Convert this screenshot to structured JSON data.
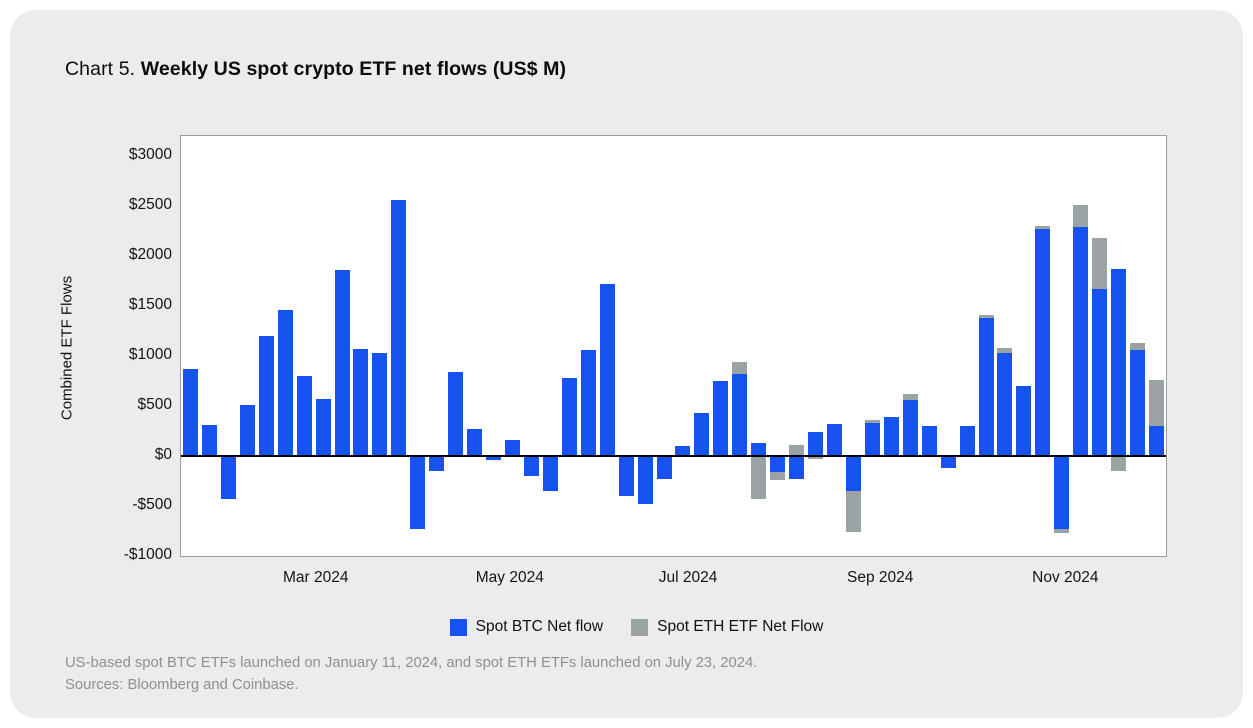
{
  "title": {
    "prefix": "Chart 5.",
    "main": "Weekly US spot crypto ETF net flows (US$ M)"
  },
  "chart_data": {
    "type": "bar",
    "stacked": true,
    "title": "Weekly US spot crypto ETF net flows (US$ M)",
    "xlabel": "",
    "ylabel": "Combined ETF Flows",
    "unit": "US$ millions",
    "x_frequency": "weekly",
    "ylim": [
      -1000,
      3000
    ],
    "grid": false,
    "legend_position": "bottom-center",
    "y_ticks": [
      {
        "value": 3000,
        "label": "$3000"
      },
      {
        "value": 2500,
        "label": "$2500"
      },
      {
        "value": 2000,
        "label": "$2000"
      },
      {
        "value": 1500,
        "label": "$1500"
      },
      {
        "value": 1000,
        "label": "$1000"
      },
      {
        "value": 500,
        "label": "$500"
      },
      {
        "value": 0,
        "label": "$0"
      },
      {
        "value": -500,
        "label": "-$500"
      },
      {
        "value": -1000,
        "label": "-$1000"
      }
    ],
    "x_ticks": [
      {
        "label": "Mar 2024",
        "pos_pct": 14.8
      },
      {
        "label": "May 2024",
        "pos_pct": 34.5
      },
      {
        "label": "Jul 2024",
        "pos_pct": 52.6
      },
      {
        "label": "Sep 2024",
        "pos_pct": 72.1
      },
      {
        "label": "Nov 2024",
        "pos_pct": 90.9
      }
    ],
    "x_week_start": [
      "2024-01-08",
      "2024-01-15",
      "2024-01-22",
      "2024-01-29",
      "2024-02-05",
      "2024-02-12",
      "2024-02-19",
      "2024-02-26",
      "2024-03-04",
      "2024-03-11",
      "2024-03-18",
      "2024-03-25",
      "2024-04-01",
      "2024-04-08",
      "2024-04-15",
      "2024-04-22",
      "2024-04-29",
      "2024-05-06",
      "2024-05-13",
      "2024-05-20",
      "2024-05-27",
      "2024-06-03",
      "2024-06-10",
      "2024-06-17",
      "2024-06-24",
      "2024-07-01",
      "2024-07-08",
      "2024-07-15",
      "2024-07-22",
      "2024-07-29",
      "2024-08-05",
      "2024-08-12",
      "2024-08-19",
      "2024-08-26",
      "2024-09-02",
      "2024-09-09",
      "2024-09-16",
      "2024-09-23",
      "2024-09-30",
      "2024-10-07",
      "2024-10-14",
      "2024-10-21",
      "2024-10-28",
      "2024-11-04",
      "2024-11-11",
      "2024-11-18",
      "2024-11-25",
      "2024-12-02",
      "2024-12-09",
      "2024-12-16",
      "2024-12-23",
      "2024-12-30"
    ],
    "series": [
      {
        "name": "Spot BTC Net flow",
        "color": "#1652f0",
        "values": [
          870,
          310,
          -430,
          510,
          1200,
          1460,
          800,
          570,
          1860,
          1070,
          1030,
          2560,
          -730,
          -150,
          840,
          270,
          -40,
          160,
          -200,
          -350,
          780,
          1060,
          1720,
          -400,
          -480,
          -230,
          100,
          430,
          750,
          820,
          130,
          -160,
          -230,
          240,
          320,
          -350,
          330,
          390,
          560,
          300,
          -120,
          300,
          1380,
          1030,
          700,
          2270,
          -730,
          2290,
          1670,
          1870,
          1060,
          300
        ]
      },
      {
        "name": "Spot ETH ETF Net Flow",
        "color": "#9aa3a3",
        "values": [
          0,
          0,
          0,
          0,
          0,
          0,
          0,
          0,
          0,
          0,
          0,
          0,
          0,
          0,
          0,
          0,
          0,
          0,
          0,
          0,
          0,
          0,
          0,
          0,
          0,
          0,
          0,
          0,
          0,
          120,
          -430,
          -80,
          110,
          -30,
          0,
          -410,
          30,
          0,
          60,
          0,
          0,
          0,
          30,
          50,
          0,
          30,
          -40,
          220,
          510,
          -150,
          70,
          460
        ]
      }
    ]
  },
  "footnotes": [
    "US-based spot BTC ETFs launched on January 11, 2024, and spot ETH ETFs launched on July 23, 2024.",
    "Sources: Bloomberg and Coinbase."
  ]
}
